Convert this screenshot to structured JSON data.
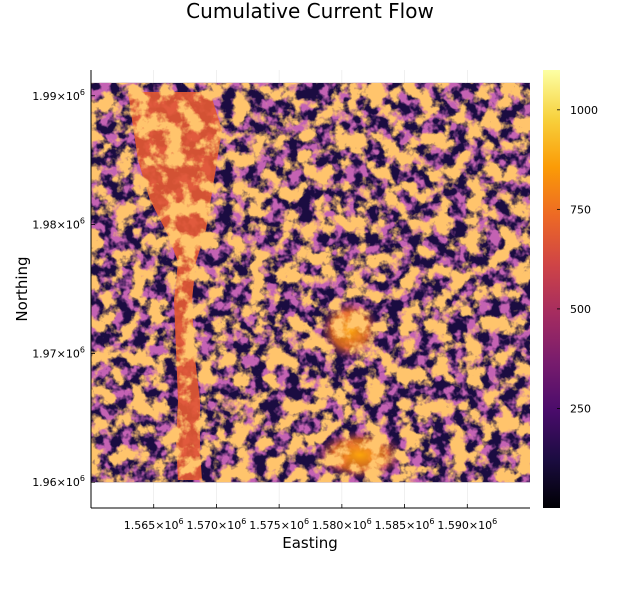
{
  "chart_data": {
    "type": "heatmap",
    "title": "Cumulative Current Flow",
    "xlabel": "Easting",
    "ylabel": "Northing",
    "xlim": [
      1560000,
      1595000
    ],
    "ylim": [
      1958000,
      1992000
    ],
    "x_ticks": [
      {
        "value": 1565000,
        "mantissa": "1.565×10",
        "exp": "6"
      },
      {
        "value": 1570000,
        "mantissa": "1.570×10",
        "exp": "6"
      },
      {
        "value": 1575000,
        "mantissa": "1.575×10",
        "exp": "6"
      },
      {
        "value": 1580000,
        "mantissa": "1.580×10",
        "exp": "6"
      },
      {
        "value": 1585000,
        "mantissa": "1.585×10",
        "exp": "6"
      },
      {
        "value": 1590000,
        "mantissa": "1.590×10",
        "exp": "6"
      }
    ],
    "y_ticks": [
      {
        "value": 1960000,
        "mantissa": "1.96×10",
        "exp": "6"
      },
      {
        "value": 1970000,
        "mantissa": "1.97×10",
        "exp": "6"
      },
      {
        "value": 1980000,
        "mantissa": "1.98×10",
        "exp": "6"
      },
      {
        "value": 1990000,
        "mantissa": "1.99×10",
        "exp": "6"
      }
    ],
    "colorbar": {
      "colormap": "inferno",
      "range": [
        0,
        1100
      ],
      "ticks": [
        250,
        500,
        750,
        1000
      ]
    },
    "grid": true,
    "raster_extent": {
      "x": [
        1560000,
        1595000
      ],
      "y": [
        1960000,
        1991000
      ]
    }
  }
}
